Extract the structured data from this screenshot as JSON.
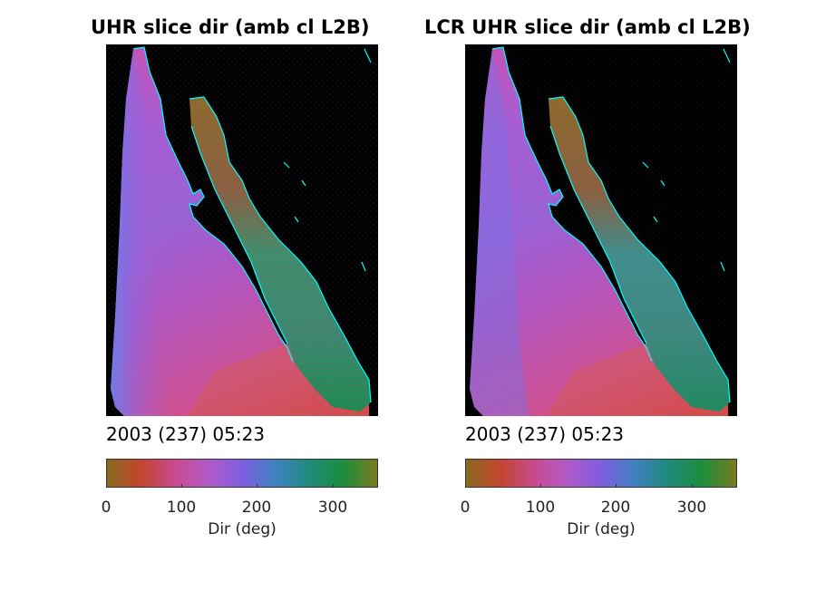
{
  "panels": [
    {
      "title": "UHR slice dir (amb cl L2B)",
      "date": "2003 (237) 05:23",
      "colorbar": {
        "label": "Dir (deg)",
        "ticks": [
          "0",
          "100",
          "200",
          "300"
        ],
        "range": [
          0,
          360
        ]
      }
    },
    {
      "title": "LCR UHR slice dir (amb cl L2B)",
      "date": "2003 (237) 05:23",
      "colorbar": {
        "label": "Dir (deg)",
        "ticks": [
          "0",
          "100",
          "200",
          "300"
        ],
        "range": [
          0,
          360
        ]
      }
    }
  ],
  "colors": {
    "background": "#000000",
    "coastline": "#00ffff",
    "colormap": [
      "#8a6a1e",
      "#c2452e",
      "#c94a8c",
      "#b25ac8",
      "#7e5ee0",
      "#3e82c0",
      "#1f8a7a",
      "#1c8e3a",
      "#7a7a22"
    ]
  }
}
